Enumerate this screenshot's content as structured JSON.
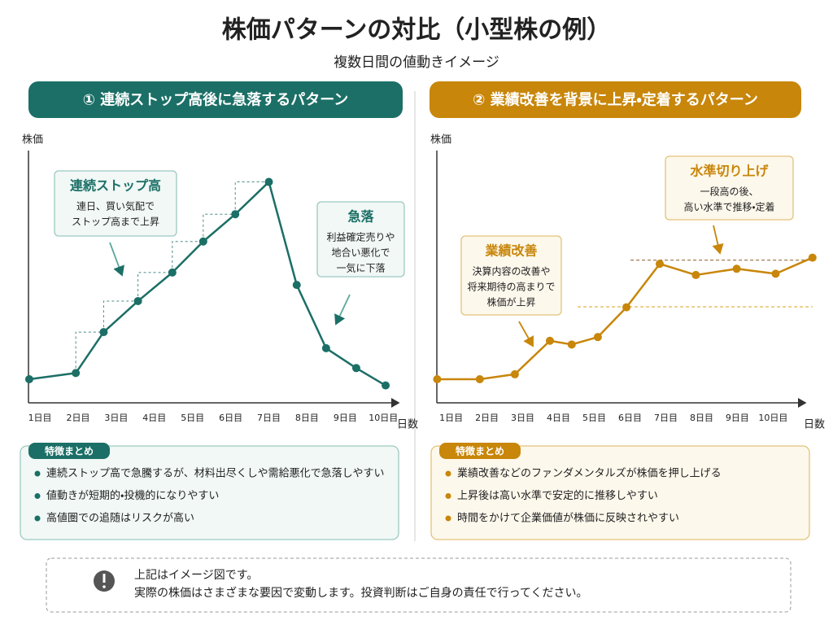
{
  "title": "株価パターンの対比（小型株の例）",
  "subtitle": "複数日間の値動きイメージ",
  "chart_data": [
    {
      "type": "line",
      "title": "① 連続ストップ高後に急落するパターン",
      "y_label": "株価",
      "x_label": "日数",
      "xlim": [
        0.7,
        10.4
      ],
      "ylim": [
        0,
        100
      ],
      "xticks": [
        {
          "value": 1,
          "label": "1日目"
        },
        {
          "value": 2,
          "label": "2日目"
        },
        {
          "value": 3,
          "label": "3日目"
        },
        {
          "value": 4,
          "label": "4日目"
        },
        {
          "value": 5,
          "label": "5日目"
        },
        {
          "value": 6,
          "label": "6日目"
        },
        {
          "value": 7,
          "label": "7日目"
        },
        {
          "value": 8,
          "label": "8日目"
        },
        {
          "value": 9,
          "label": "9日目"
        },
        {
          "value": 10,
          "label": "10日目"
        }
      ],
      "x": [
        0.72,
        1.94,
        2.67,
        3.57,
        4.47,
        5.28,
        6.12,
        7.0,
        7.73,
        8.5,
        9.29,
        10.06
      ],
      "series": [
        {
          "color": "#1b6f66",
          "values": [
            9.5,
            12,
            28.5,
            41,
            52.5,
            65,
            76,
            89,
            47.5,
            22,
            14,
            7
          ]
        }
      ],
      "guides": "steps",
      "annotations": [
        {
          "title": "連続ストップ高",
          "lines": [
            "連日、買い気配で",
            "ストップ高まで上昇"
          ]
        },
        {
          "title": "急落",
          "lines": [
            "利益確定売りや",
            "地合い悪化で",
            "一気に下落"
          ]
        }
      ],
      "summary": {
        "title": "特徴まとめ",
        "items": [
          "連続ストップ高で急騰するが、材料出尽くしや需給悪化で急落しやすい",
          "値動きが短期的・投機的になりやすい",
          "高値圏での追随はリスクが高い"
        ]
      }
    },
    {
      "type": "line",
      "title": "② 業績改善を背景に上昇・定着するパターン",
      "y_label": "株価",
      "x_label": "日数",
      "xlim": [
        0.6,
        10.9
      ],
      "ylim": [
        0,
        100
      ],
      "xticks": [
        {
          "value": 1,
          "label": "1日目"
        },
        {
          "value": 2,
          "label": "2日目"
        },
        {
          "value": 3,
          "label": "3日目"
        },
        {
          "value": 4,
          "label": "4日目"
        },
        {
          "value": 5,
          "label": "5日目"
        },
        {
          "value": 6,
          "label": "6日目"
        },
        {
          "value": 7,
          "label": "7日目"
        },
        {
          "value": 8,
          "label": "8日目"
        },
        {
          "value": 9,
          "label": "9日目"
        },
        {
          "value": 10,
          "label": "10日目"
        }
      ],
      "x": [
        0.61,
        1.8,
        2.78,
        3.76,
        4.37,
        5.1,
        5.9,
        6.83,
        7.84,
        8.98,
        10.07,
        11.1
      ],
      "series": [
        {
          "color": "#c8860a",
          "values": [
            9.5,
            9.5,
            11.5,
            25,
            23.5,
            26.5,
            38.5,
            56,
            51.5,
            54,
            52,
            58.5
          ]
        }
      ],
      "reference_lines": [
        57.5,
        38.7
      ],
      "annotations": [
        {
          "title": "業績改善",
          "lines": [
            "決算内容の改善や",
            "将来期待の高まりで",
            "株価が上昇"
          ]
        },
        {
          "title": "水準切り上げ",
          "lines": [
            "一段高の後、",
            "高い水準で推移・定着"
          ]
        }
      ],
      "summary": {
        "title": "特徴まとめ",
        "items": [
          "業績改善などのファンダメンタルズが株価を押し上げる",
          "上昇後は高い水準で安定的に推移しやすい",
          "時間をかけて企業価値が株価に反映されやすい"
        ]
      }
    }
  ],
  "notice": {
    "lines": [
      "上記はイメージ図です。",
      "実際の株価はさまざまな要因で変動します。投資判断はご自身の責任で行ってください。"
    ]
  }
}
